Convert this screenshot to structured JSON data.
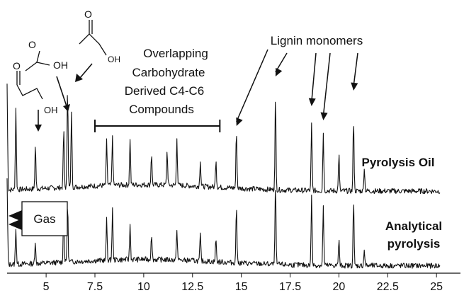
{
  "chart_data": {
    "type": "line",
    "x_ticks": [
      5,
      7.5,
      10,
      12.5,
      15,
      17.5,
      20,
      22.5,
      25
    ],
    "xlim": [
      3,
      26.3
    ],
    "series": [
      {
        "name": "Pyrolysis Oil",
        "baseline": 0.12,
        "peaks": [
          {
            "x": 3.0,
            "h": 1.0
          },
          {
            "x": 3.45,
            "h": 0.78
          },
          {
            "x": 4.45,
            "h": 0.42
          },
          {
            "x": 5.9,
            "h": 0.55
          },
          {
            "x": 6.1,
            "h": 0.95
          },
          {
            "x": 6.3,
            "h": 0.72
          },
          {
            "x": 8.1,
            "h": 0.42
          },
          {
            "x": 8.4,
            "h": 0.47
          },
          {
            "x": 9.3,
            "h": 0.44
          },
          {
            "x": 10.4,
            "h": 0.3
          },
          {
            "x": 11.2,
            "h": 0.33
          },
          {
            "x": 11.7,
            "h": 0.46
          },
          {
            "x": 12.9,
            "h": 0.25
          },
          {
            "x": 13.7,
            "h": 0.27
          },
          {
            "x": 14.75,
            "h": 0.55
          },
          {
            "x": 16.75,
            "h": 0.88
          },
          {
            "x": 18.6,
            "h": 0.62
          },
          {
            "x": 19.2,
            "h": 0.55
          },
          {
            "x": 20.0,
            "h": 0.35
          },
          {
            "x": 20.75,
            "h": 0.68
          },
          {
            "x": 21.3,
            "h": 0.22
          }
        ]
      },
      {
        "name": "Analytical pyrolysis",
        "baseline": 0.05,
        "peaks": [
          {
            "x": 3.0,
            "h": 0.8
          },
          {
            "x": 3.45,
            "h": 0.35
          },
          {
            "x": 4.45,
            "h": 0.2
          },
          {
            "x": 5.9,
            "h": 0.5
          },
          {
            "x": 6.1,
            "h": 0.55
          },
          {
            "x": 8.1,
            "h": 0.38
          },
          {
            "x": 8.4,
            "h": 0.48
          },
          {
            "x": 9.3,
            "h": 0.33
          },
          {
            "x": 10.4,
            "h": 0.25
          },
          {
            "x": 11.7,
            "h": 0.3
          },
          {
            "x": 12.9,
            "h": 0.25
          },
          {
            "x": 13.7,
            "h": 0.22
          },
          {
            "x": 14.75,
            "h": 0.55
          },
          {
            "x": 16.75,
            "h": 0.78
          },
          {
            "x": 18.6,
            "h": 0.65
          },
          {
            "x": 19.2,
            "h": 0.55
          },
          {
            "x": 20.0,
            "h": 0.25
          },
          {
            "x": 20.75,
            "h": 0.6
          },
          {
            "x": 21.3,
            "h": 0.15
          }
        ]
      }
    ],
    "annotations": {
      "overlapping": [
        "Overlapping",
        "Carbohydrate",
        "Derived C4-C6",
        "Compounds"
      ],
      "lignin": "Lignin monomers",
      "gas": "Gas",
      "oh_label": "OH",
      "pyrolysis_oil": "Pyrolysis Oil",
      "analytical": [
        "Analytical",
        "pyrolysis"
      ],
      "bracket_range": [
        7.5,
        13.9
      ]
    }
  }
}
